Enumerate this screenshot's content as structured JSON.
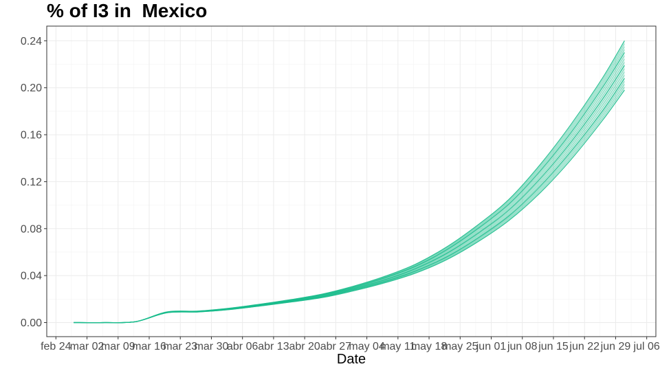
{
  "chart_data": {
    "type": "line",
    "title": "% of I3 in  Mexico",
    "xlabel": "Date",
    "ylabel": "",
    "x_axis": {
      "type": "date",
      "range": [
        "2020-02-24",
        "2020-07-06"
      ],
      "ticks": [
        {
          "date": "2020-02-24",
          "label": "feb 24"
        },
        {
          "date": "2020-03-02",
          "label": "mar 02"
        },
        {
          "date": "2020-03-09",
          "label": "mar 09"
        },
        {
          "date": "2020-03-16",
          "label": "mar 16"
        },
        {
          "date": "2020-03-23",
          "label": "mar 23"
        },
        {
          "date": "2020-03-30",
          "label": "mar 30"
        },
        {
          "date": "2020-04-06",
          "label": "abr 06"
        },
        {
          "date": "2020-04-13",
          "label": "abr 13"
        },
        {
          "date": "2020-04-20",
          "label": "abr 20"
        },
        {
          "date": "2020-04-27",
          "label": "abr 27"
        },
        {
          "date": "2020-05-04",
          "label": "may 04"
        },
        {
          "date": "2020-05-11",
          "label": "may 11"
        },
        {
          "date": "2020-05-18",
          "label": "may 18"
        },
        {
          "date": "2020-05-25",
          "label": "may 25"
        },
        {
          "date": "2020-06-01",
          "label": "jun 01"
        },
        {
          "date": "2020-06-08",
          "label": "jun 08"
        },
        {
          "date": "2020-06-15",
          "label": "jun 15"
        },
        {
          "date": "2020-06-22",
          "label": "jun 22"
        },
        {
          "date": "2020-06-29",
          "label": "jun 29"
        },
        {
          "date": "2020-07-06",
          "label": "jul 06"
        }
      ]
    },
    "y_axis": {
      "range": [
        -0.012,
        0.2525
      ],
      "ticks": [
        "0.00",
        "0.04",
        "0.08",
        "0.12",
        "0.16",
        "0.20",
        "0.24"
      ]
    },
    "grid": true,
    "legend": "none",
    "line_color": "#1abc8c",
    "series_description": "ensemble of simulation runs",
    "x": [
      "2020-02-28",
      "2020-03-06",
      "2020-03-13",
      "2020-03-20",
      "2020-03-27",
      "2020-04-03",
      "2020-04-10",
      "2020-04-17",
      "2020-04-24",
      "2020-05-01",
      "2020-05-08",
      "2020-05-15",
      "2020-05-22",
      "2020-05-29",
      "2020-06-05",
      "2020-06-12",
      "2020-06-19",
      "2020-06-26",
      "2020-07-01"
    ],
    "series": [
      {
        "values": [
          0.0,
          0.0,
          0.0008,
          0.0085,
          0.0092,
          0.0113,
          0.0145,
          0.018,
          0.022,
          0.028,
          0.035,
          0.044,
          0.056,
          0.072,
          0.091,
          0.116,
          0.146,
          0.18,
          0.208
        ]
      },
      {
        "values": [
          0.0,
          0.0,
          0.0008,
          0.0087,
          0.0094,
          0.0116,
          0.0149,
          0.0185,
          0.0228,
          0.029,
          0.0364,
          0.046,
          0.059,
          0.076,
          0.096,
          0.1225,
          0.154,
          0.19,
          0.219
        ]
      },
      {
        "values": [
          0.0,
          0.0,
          0.0008,
          0.0089,
          0.0096,
          0.0119,
          0.0153,
          0.0191,
          0.0236,
          0.03,
          0.038,
          0.048,
          0.062,
          0.08,
          0.101,
          0.129,
          0.162,
          0.2,
          0.23
        ]
      },
      {
        "values": [
          0.0,
          0.0,
          0.0008,
          0.0083,
          0.009,
          0.011,
          0.0141,
          0.0175,
          0.0213,
          0.027,
          0.0338,
          0.0422,
          0.0536,
          0.0688,
          0.087,
          0.1105,
          0.139,
          0.172,
          0.198
        ]
      },
      {
        "values": [
          0.0,
          0.0,
          0.0008,
          0.0091,
          0.0098,
          0.0122,
          0.0157,
          0.0196,
          0.0243,
          0.031,
          0.0393,
          0.0498,
          0.0645,
          0.0832,
          0.105,
          0.1345,
          0.169,
          0.208,
          0.24
        ]
      }
    ]
  }
}
